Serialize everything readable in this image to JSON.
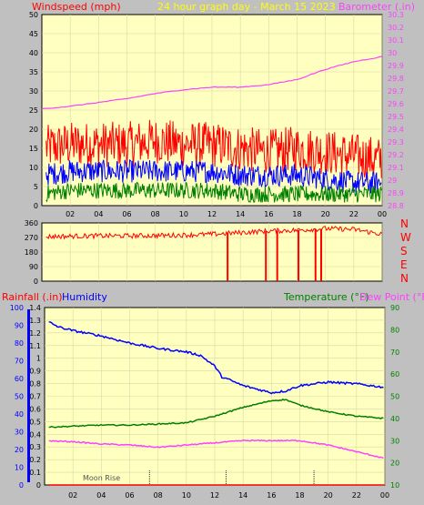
{
  "header": {
    "title": "24 hour graph day - March 15 2023",
    "left_label": "Windspeed (mph)",
    "right_label": "Barometer (.in)"
  },
  "colors": {
    "background": "#c0c0c0",
    "plot_bg": "#ffffc0",
    "grid": "#d8d8a8",
    "wind_gust": "#ff0000",
    "wind_avg": "#0000ff",
    "wind_low": "#008000",
    "barometer": "#ff40ff",
    "direction": "#ff0000",
    "humidity": "#0000ff",
    "temperature": "#008000",
    "dew_point": "#ff40ff",
    "rain": "#ff0000",
    "title": "#ffff00",
    "axis_text": "#000000",
    "humidity_axis": "#0000ff",
    "moon": "#555555"
  },
  "time_axis": {
    "ticks": [
      "02",
      "04",
      "06",
      "08",
      "10",
      "12",
      "14",
      "16",
      "18",
      "20",
      "22",
      "00"
    ]
  },
  "wind_panel": {
    "left_ticks": [
      "0",
      "5",
      "10",
      "15",
      "20",
      "25",
      "30",
      "35",
      "40",
      "45",
      "50"
    ],
    "right_ticks": [
      "28.8",
      "28.9",
      "29",
      "29.1",
      "29.2",
      "29.3",
      "29.4",
      "29.5",
      "29.6",
      "29.7",
      "29.8",
      "29.9",
      "30",
      "30.1",
      "30.2",
      "30.3"
    ]
  },
  "direction_panel": {
    "left_ticks": [
      "0",
      "90",
      "180",
      "270",
      "360"
    ],
    "compass": [
      "N",
      "W",
      "S",
      "E",
      "N"
    ]
  },
  "bottom_panel": {
    "rain_label": "Rainfall (.in)",
    "humidity_label": "Humidity",
    "temp_label": "Temperature (°F)",
    "dew_label": "Dew Point (°F)",
    "humidity_ticks": [
      "0",
      "10",
      "20",
      "30",
      "40",
      "50",
      "60",
      "70",
      "80",
      "90",
      "100"
    ],
    "rain_ticks": [
      "0",
      "0.1",
      "0.2",
      "0.3",
      "0.4",
      "0.5",
      "0.6",
      "0.7",
      "0.8",
      "0.9",
      "1",
      "1.1",
      "1.2",
      "1.3",
      "1.4"
    ],
    "temp_ticks": [
      "10",
      "20",
      "30",
      "40",
      "50",
      "60",
      "70",
      "80",
      "90"
    ],
    "moon_label": "Moon Rise"
  },
  "chart_data": [
    {
      "type": "line",
      "x_unit": "hour",
      "x_range": [
        0,
        24
      ],
      "ylim": [
        0,
        50
      ],
      "y2lim": [
        28.8,
        30.3
      ],
      "series": [
        {
          "name": "Windspeed (mph)",
          "axis": "left",
          "role": "gust",
          "x": [
            0,
            2,
            4,
            6,
            8,
            10,
            12,
            14,
            16,
            18,
            20,
            22,
            24
          ],
          "values": [
            15,
            16,
            16,
            16,
            17,
            16,
            16,
            15,
            14,
            15,
            14,
            13,
            12
          ]
        },
        {
          "name": "Windspeed (mph)",
          "axis": "left",
          "role": "average",
          "x": [
            0,
            2,
            4,
            6,
            8,
            10,
            12,
            14,
            16,
            18,
            20,
            22,
            24
          ],
          "values": [
            8,
            9,
            9,
            9,
            9,
            9,
            9,
            8,
            8,
            8,
            7,
            6,
            6
          ]
        },
        {
          "name": "Windspeed (mph)",
          "axis": "left",
          "role": "low",
          "x": [
            0,
            2,
            4,
            6,
            8,
            10,
            12,
            14,
            16,
            18,
            20,
            22,
            24
          ],
          "values": [
            3,
            4,
            4,
            4,
            4,
            4,
            4,
            3,
            3,
            3,
            3,
            3,
            3
          ]
        },
        {
          "name": "Barometer (.in)",
          "axis": "right",
          "x": [
            0,
            2,
            4,
            6,
            8,
            10,
            12,
            14,
            16,
            18,
            20,
            22,
            24
          ],
          "values": [
            29.56,
            29.58,
            29.61,
            29.64,
            29.68,
            29.71,
            29.73,
            29.73,
            29.75,
            29.79,
            29.87,
            29.93,
            29.97
          ]
        }
      ]
    },
    {
      "type": "line",
      "x_unit": "hour",
      "x_range": [
        0,
        24
      ],
      "ylim": [
        0,
        360
      ],
      "series": [
        {
          "name": "Wind direction",
          "x": [
            0,
            2,
            4,
            6,
            8,
            10,
            12,
            14,
            16,
            18,
            20,
            22,
            24
          ],
          "values": [
            275,
            278,
            280,
            280,
            282,
            285,
            290,
            300,
            310,
            315,
            325,
            320,
            290
          ],
          "drops": [
            {
              "x": 13.1,
              "value": 0
            },
            {
              "x": 15.8,
              "value": 0
            },
            {
              "x": 16.6,
              "value": 0
            },
            {
              "x": 18.1,
              "value": 0
            },
            {
              "x": 19.3,
              "value": 0
            },
            {
              "x": 19.7,
              "value": 0
            }
          ]
        }
      ]
    },
    {
      "type": "line",
      "x_unit": "hour",
      "x_range": [
        0,
        24
      ],
      "ylim": [
        0,
        100
      ],
      "y_rain_lim": [
        0,
        1.4
      ],
      "y2lim": [
        10,
        90
      ],
      "series": [
        {
          "name": "Humidity",
          "axis": "left",
          "x": [
            0,
            1,
            2,
            4,
            6,
            8,
            10,
            11,
            12,
            12.5,
            14,
            16,
            17,
            18,
            20,
            22,
            24
          ],
          "values": [
            93,
            89,
            87,
            84,
            80,
            77,
            75,
            73,
            67,
            61,
            56,
            52,
            53,
            56,
            58,
            57,
            55
          ]
        },
        {
          "name": "Temperature (°F)",
          "axis": "right",
          "x": [
            0,
            2,
            4,
            6,
            8,
            10,
            12,
            14,
            16,
            17,
            18,
            20,
            22,
            24
          ],
          "values": [
            36,
            36.5,
            37,
            37,
            37.5,
            38,
            41,
            45,
            48,
            48.5,
            46,
            43,
            41,
            40
          ]
        },
        {
          "name": "Dew Point (°F)",
          "axis": "right",
          "x": [
            0,
            2,
            4,
            6,
            8,
            10,
            12,
            14,
            16,
            18,
            20,
            22,
            24
          ],
          "values": [
            30,
            29.5,
            28.5,
            28,
            27,
            28,
            29,
            30,
            30,
            30,
            28,
            25,
            22
          ]
        },
        {
          "name": "Rainfall (.in)",
          "axis": "rain",
          "x": [
            0,
            24
          ],
          "values": [
            0,
            0
          ]
        }
      ]
    }
  ]
}
